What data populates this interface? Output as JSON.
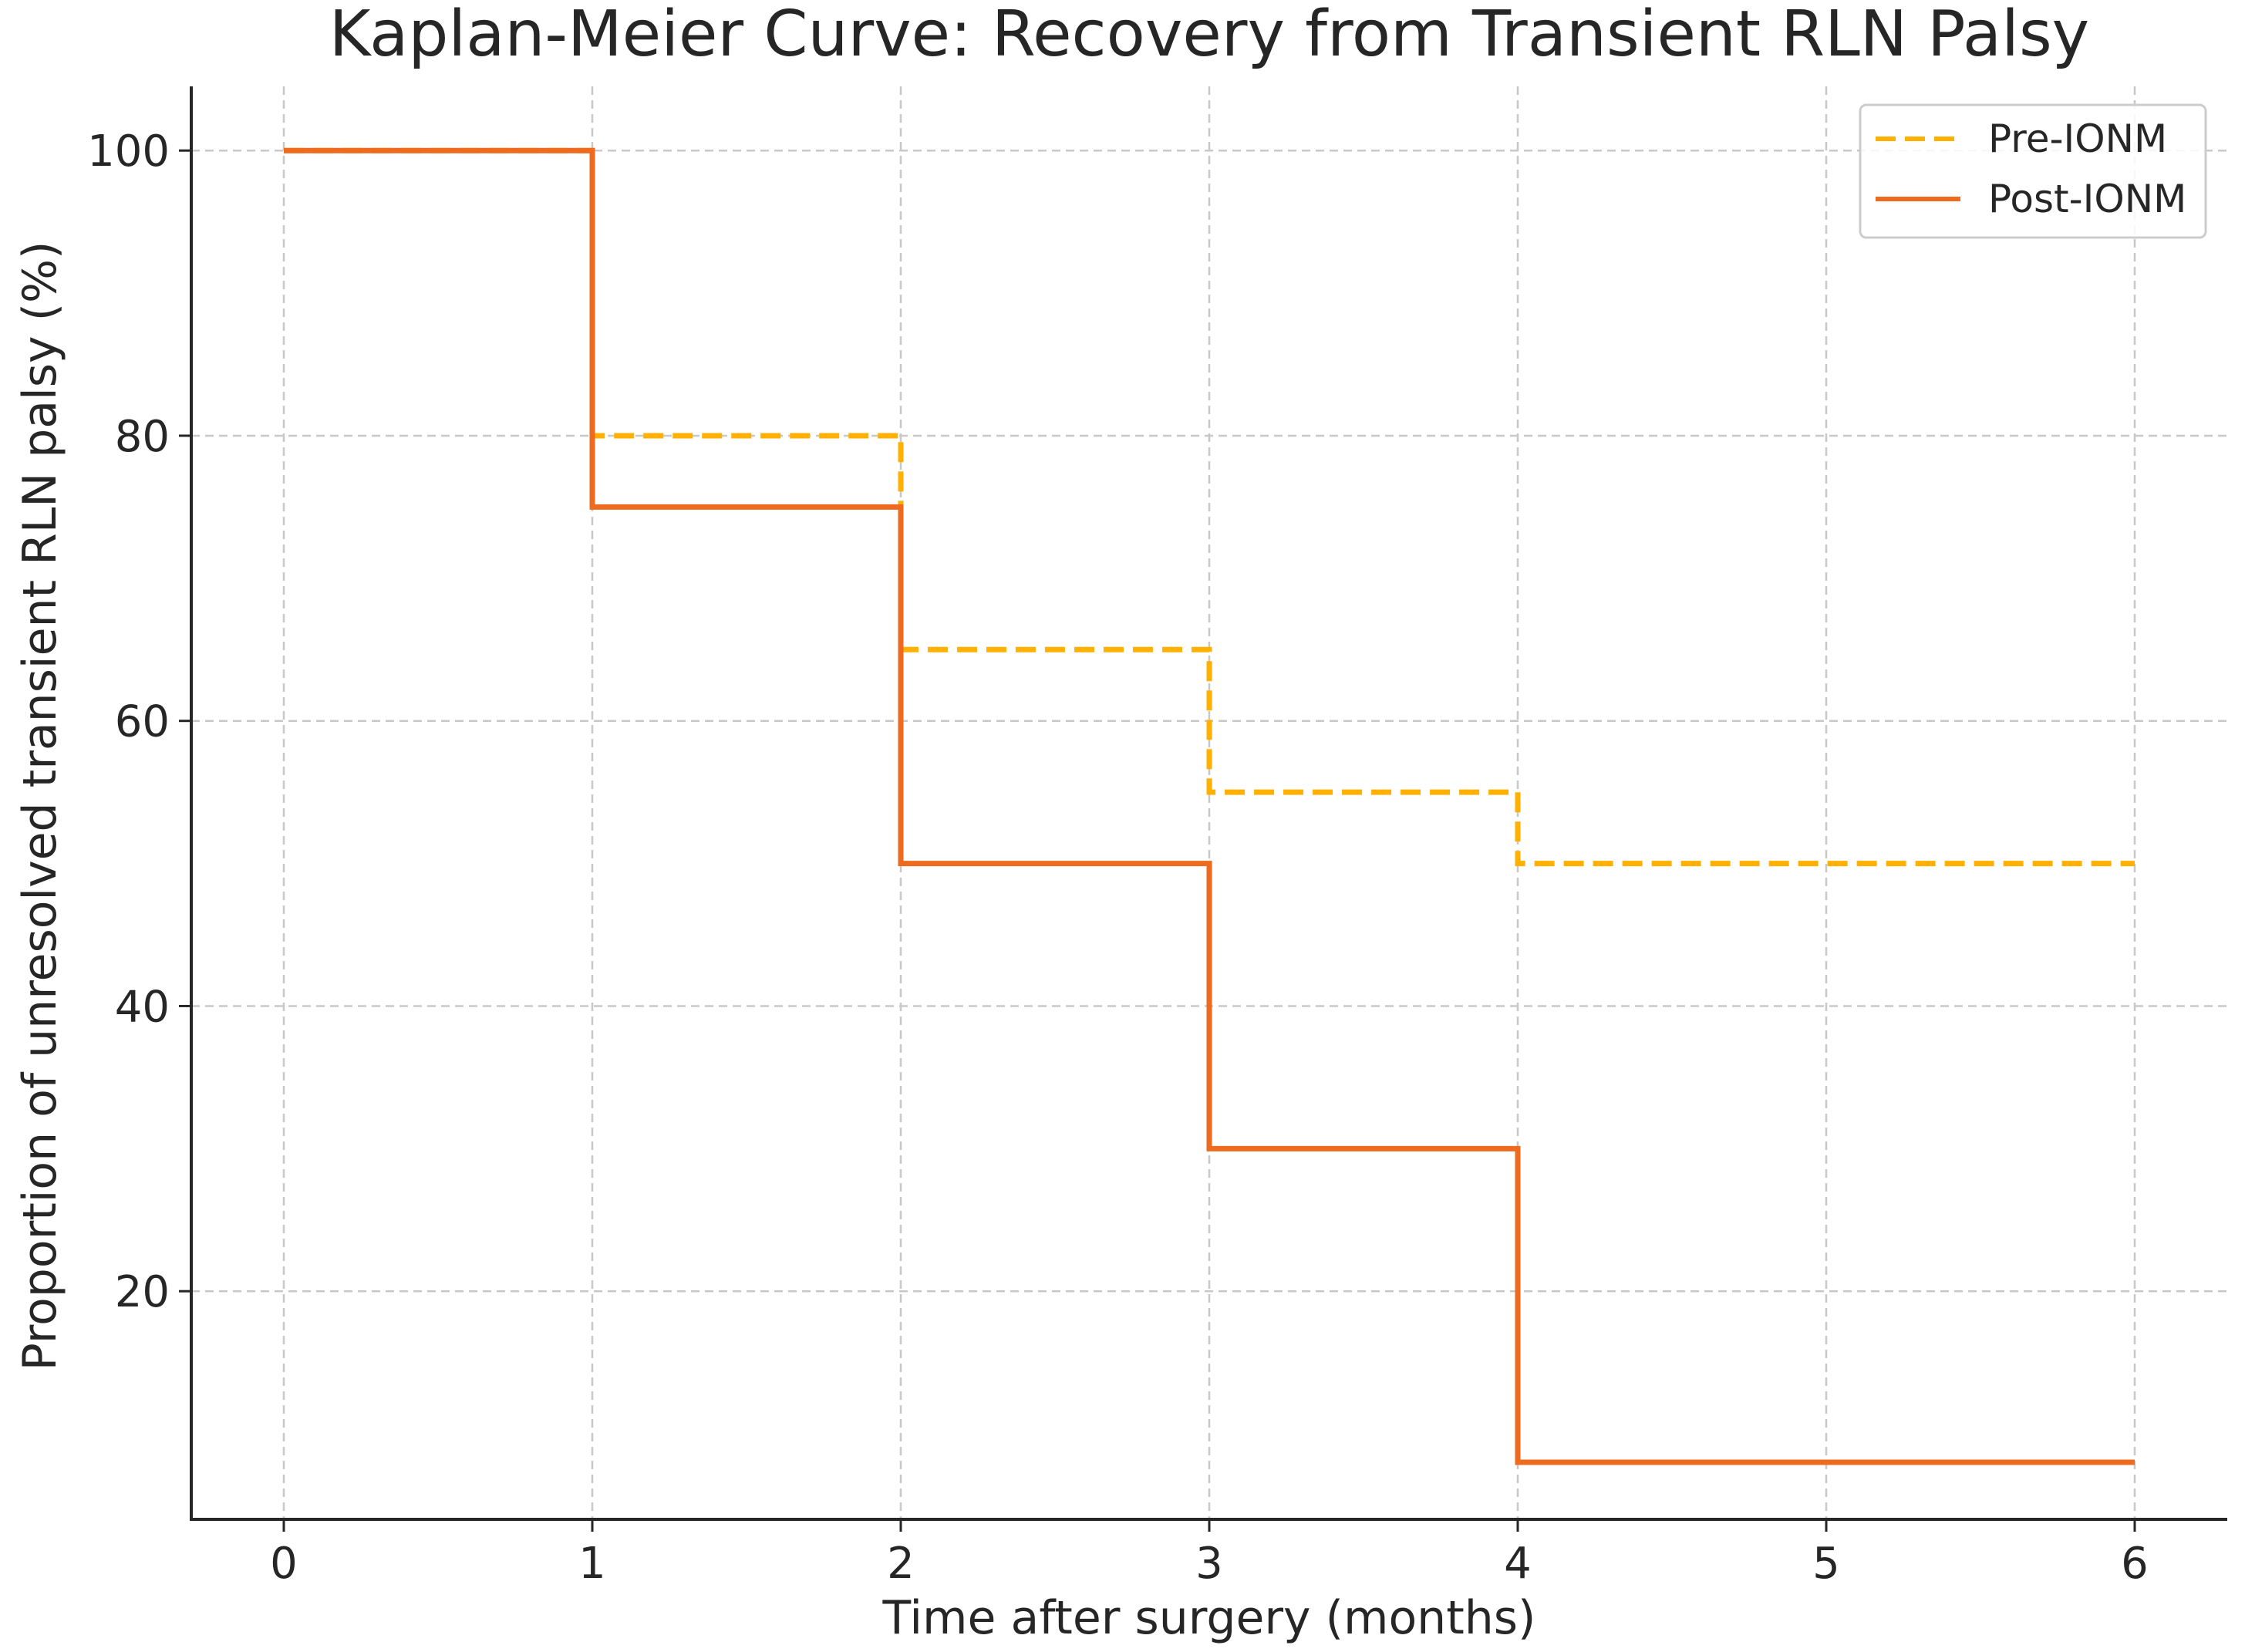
{
  "chart_data": {
    "type": "line",
    "step": "post",
    "title": "Kaplan-Meier Curve: Recovery from Transient RLN Palsy",
    "xlabel": "Time after surgery (months)",
    "ylabel": "Proportion of unresolved transient RLN palsy (%)",
    "xlim": [
      -0.3,
      6.3
    ],
    "ylim": [
      4,
      104.5
    ],
    "xticks": [
      0,
      1,
      2,
      3,
      4,
      5,
      6
    ],
    "yticks": [
      20,
      40,
      60,
      80,
      100
    ],
    "xtick_labels": [
      "0",
      "1",
      "2",
      "3",
      "4",
      "5",
      "6"
    ],
    "ytick_labels": [
      "20",
      "40",
      "60",
      "80",
      "100"
    ],
    "grid": true,
    "legend_position": "top-right",
    "series": [
      {
        "name": "Pre-IONM",
        "color": "#FFB000",
        "style": "dashed",
        "x": [
          0,
          1,
          2,
          3,
          4,
          6
        ],
        "y": [
          100,
          80,
          65,
          55,
          50,
          50
        ]
      },
      {
        "name": "Post-IONM",
        "color": "#EE6A1F",
        "style": "solid",
        "x": [
          0,
          1,
          2,
          3,
          4,
          6
        ],
        "y": [
          100,
          75,
          50,
          30,
          8,
          8
        ]
      }
    ]
  }
}
